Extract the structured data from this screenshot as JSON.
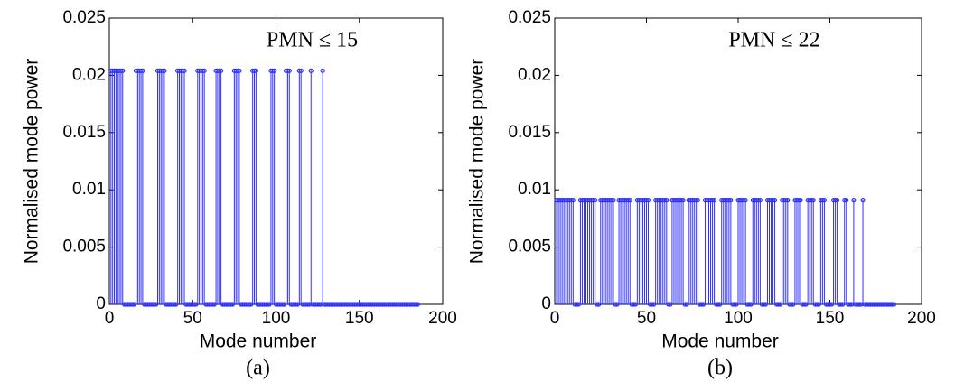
{
  "chart_data": [
    {
      "type": "stem",
      "annotation": "PMN ≤ 15",
      "caption": "(a)",
      "xlabel": "Mode number",
      "ylabel": "Normalised mode power",
      "color": "#2e2eff",
      "xlim": [
        0,
        200
      ],
      "ylim": [
        0,
        0.025
      ],
      "xticks": [
        0,
        50,
        100,
        150,
        200
      ],
      "yticks": [
        0,
        0.005,
        0.01,
        0.015,
        0.02,
        0.025
      ],
      "x": [
        1,
        2,
        3,
        4,
        5,
        6,
        7,
        8,
        9,
        10,
        11,
        12,
        13,
        14,
        15,
        16,
        17,
        18,
        19,
        20,
        21,
        22,
        23,
        24,
        25,
        26,
        27,
        28,
        29,
        30,
        31,
        32,
        33,
        34,
        35,
        36,
        37,
        38,
        39,
        40,
        41,
        42,
        43,
        44,
        45,
        46,
        47,
        48,
        49,
        50,
        51,
        52,
        53,
        54,
        55,
        56,
        57,
        58,
        59,
        60,
        61,
        62,
        63,
        64,
        65,
        66,
        67,
        68,
        69,
        70,
        71,
        72,
        73,
        74,
        75,
        76,
        77,
        78,
        79,
        80,
        81,
        82,
        83,
        84,
        85,
        86,
        87,
        88,
        89,
        90,
        91,
        92,
        93,
        94,
        95,
        96,
        97,
        98,
        99,
        100,
        101,
        102,
        103,
        104,
        105,
        106,
        107,
        108,
        109,
        110,
        111,
        112,
        113,
        114,
        115,
        116,
        117,
        118,
        119,
        120,
        121,
        122,
        123,
        124,
        125,
        126,
        127,
        128,
        129,
        130,
        131,
        132,
        133,
        134,
        135,
        136,
        137,
        138,
        139,
        140,
        141,
        142,
        143,
        144,
        145,
        146,
        147,
        148,
        149,
        150,
        151,
        152,
        153,
        154,
        155,
        156,
        157,
        158,
        159,
        160,
        161,
        162,
        163,
        164,
        165,
        166,
        167,
        168,
        169,
        170,
        171,
        172,
        173,
        174,
        175,
        176,
        177,
        178,
        179,
        180,
        181,
        182,
        183,
        184,
        185
      ],
      "values": [
        0.0204,
        0.0204,
        0.0204,
        0.0204,
        0.0204,
        0.0204,
        0.0204,
        0.0204,
        0,
        0,
        0,
        0,
        0,
        0,
        0,
        0.0204,
        0.0204,
        0.0204,
        0.0204,
        0.0204,
        0,
        0,
        0,
        0,
        0,
        0,
        0,
        0,
        0.0204,
        0.0204,
        0.0204,
        0.0204,
        0.0204,
        0,
        0,
        0,
        0,
        0,
        0,
        0,
        0.0204,
        0.0204,
        0.0204,
        0.0204,
        0.0204,
        0,
        0,
        0,
        0,
        0,
        0,
        0,
        0.0204,
        0.0204,
        0.0204,
        0.0204,
        0.0204,
        0,
        0,
        0,
        0,
        0,
        0,
        0.0204,
        0.0204,
        0.0204,
        0.0204,
        0,
        0,
        0,
        0,
        0,
        0,
        0,
        0.0204,
        0.0204,
        0.0204,
        0.0204,
        0,
        0,
        0,
        0,
        0,
        0,
        0,
        0.0204,
        0.0204,
        0.0204,
        0,
        0,
        0,
        0,
        0,
        0,
        0,
        0,
        0.0204,
        0.0204,
        0.0204,
        0,
        0,
        0,
        0,
        0,
        0,
        0.0204,
        0.0204,
        0.0204,
        0,
        0,
        0,
        0,
        0,
        0.0204,
        0.0204,
        0,
        0,
        0,
        0,
        0,
        0.0204,
        0,
        0,
        0,
        0,
        0,
        0,
        0.0204,
        0,
        0,
        0,
        0,
        0,
        0,
        0,
        0,
        0,
        0,
        0,
        0,
        0,
        0,
        0,
        0,
        0,
        0,
        0,
        0,
        0,
        0,
        0,
        0,
        0,
        0,
        0,
        0,
        0,
        0,
        0,
        0,
        0,
        0,
        0,
        0,
        0,
        0,
        0,
        0,
        0,
        0,
        0,
        0,
        0,
        0,
        0,
        0,
        0,
        0,
        0,
        0,
        0,
        0,
        0,
        0,
        0
      ]
    },
    {
      "type": "stem",
      "annotation": "PMN ≤ 22",
      "caption": "(b)",
      "xlabel": "Mode number",
      "ylabel": "Normalised mode power",
      "color": "#2e2eff",
      "xlim": [
        0,
        200
      ],
      "ylim": [
        0,
        0.025
      ],
      "xticks": [
        0,
        50,
        100,
        150,
        200
      ],
      "yticks": [
        0,
        0.005,
        0.01,
        0.015,
        0.02,
        0.025
      ],
      "x": [
        1,
        2,
        3,
        4,
        5,
        6,
        7,
        8,
        9,
        10,
        11,
        12,
        13,
        14,
        15,
        16,
        17,
        18,
        19,
        20,
        21,
        22,
        23,
        24,
        25,
        26,
        27,
        28,
        29,
        30,
        31,
        32,
        33,
        34,
        35,
        36,
        37,
        38,
        39,
        40,
        41,
        42,
        43,
        44,
        45,
        46,
        47,
        48,
        49,
        50,
        51,
        52,
        53,
        54,
        55,
        56,
        57,
        58,
        59,
        60,
        61,
        62,
        63,
        64,
        65,
        66,
        67,
        68,
        69,
        70,
        71,
        72,
        73,
        74,
        75,
        76,
        77,
        78,
        79,
        80,
        81,
        82,
        83,
        84,
        85,
        86,
        87,
        88,
        89,
        90,
        91,
        92,
        93,
        94,
        95,
        96,
        97,
        98,
        99,
        100,
        101,
        102,
        103,
        104,
        105,
        106,
        107,
        108,
        109,
        110,
        111,
        112,
        113,
        114,
        115,
        116,
        117,
        118,
        119,
        120,
        121,
        122,
        123,
        124,
        125,
        126,
        127,
        128,
        129,
        130,
        131,
        132,
        133,
        134,
        135,
        136,
        137,
        138,
        139,
        140,
        141,
        142,
        143,
        144,
        145,
        146,
        147,
        148,
        149,
        150,
        151,
        152,
        153,
        154,
        155,
        156,
        157,
        158,
        159,
        160,
        161,
        162,
        163,
        164,
        165,
        166,
        167,
        168,
        169,
        170,
        171,
        172,
        173,
        174,
        175,
        176,
        177,
        178,
        179,
        180,
        181,
        182,
        183,
        184,
        185
      ],
      "values": [
        0.0091,
        0.0091,
        0.0091,
        0.0091,
        0.0091,
        0.0091,
        0.0091,
        0.0091,
        0.0091,
        0.0091,
        0,
        0,
        0,
        0.0091,
        0.0091,
        0.0091,
        0.0091,
        0.0091,
        0.0091,
        0.0091,
        0.0091,
        0.0091,
        0,
        0,
        0.0091,
        0.0091,
        0.0091,
        0.0091,
        0.0091,
        0.0091,
        0.0091,
        0.0091,
        0,
        0,
        0.0091,
        0.0091,
        0.0091,
        0.0091,
        0.0091,
        0.0091,
        0.0091,
        0,
        0,
        0,
        0.0091,
        0.0091,
        0.0091,
        0.0091,
        0.0091,
        0.0091,
        0.0091,
        0,
        0,
        0,
        0.0091,
        0.0091,
        0.0091,
        0.0091,
        0.0091,
        0.0091,
        0.0091,
        0,
        0,
        0.0091,
        0.0091,
        0.0091,
        0.0091,
        0.0091,
        0.0091,
        0.0091,
        0,
        0,
        0.0091,
        0.0091,
        0.0091,
        0.0091,
        0.0091,
        0.0091,
        0,
        0,
        0,
        0.0091,
        0.0091,
        0.0091,
        0.0091,
        0.0091,
        0.0091,
        0,
        0,
        0,
        0.0091,
        0.0091,
        0.0091,
        0.0091,
        0.0091,
        0.0091,
        0,
        0,
        0,
        0.0091,
        0.0091,
        0.0091,
        0.0091,
        0.0091,
        0,
        0,
        0,
        0.0091,
        0.0091,
        0.0091,
        0.0091,
        0.0091,
        0,
        0,
        0,
        0.0091,
        0.0091,
        0.0091,
        0.0091,
        0.0091,
        0,
        0,
        0,
        0.0091,
        0.0091,
        0.0091,
        0.0091,
        0,
        0,
        0,
        0.0091,
        0.0091,
        0.0091,
        0.0091,
        0,
        0,
        0,
        0.0091,
        0.0091,
        0.0091,
        0.0091,
        0,
        0,
        0,
        0.0091,
        0.0091,
        0.0091,
        0,
        0,
        0,
        0,
        0.0091,
        0.0091,
        0.0091,
        0,
        0,
        0,
        0.0091,
        0.0091,
        0,
        0,
        0,
        0.0091,
        0,
        0,
        0,
        0,
        0.0091,
        0,
        0,
        0,
        0,
        0,
        0,
        0,
        0,
        0,
        0,
        0,
        0,
        0,
        0,
        0,
        0,
        0
      ]
    }
  ]
}
